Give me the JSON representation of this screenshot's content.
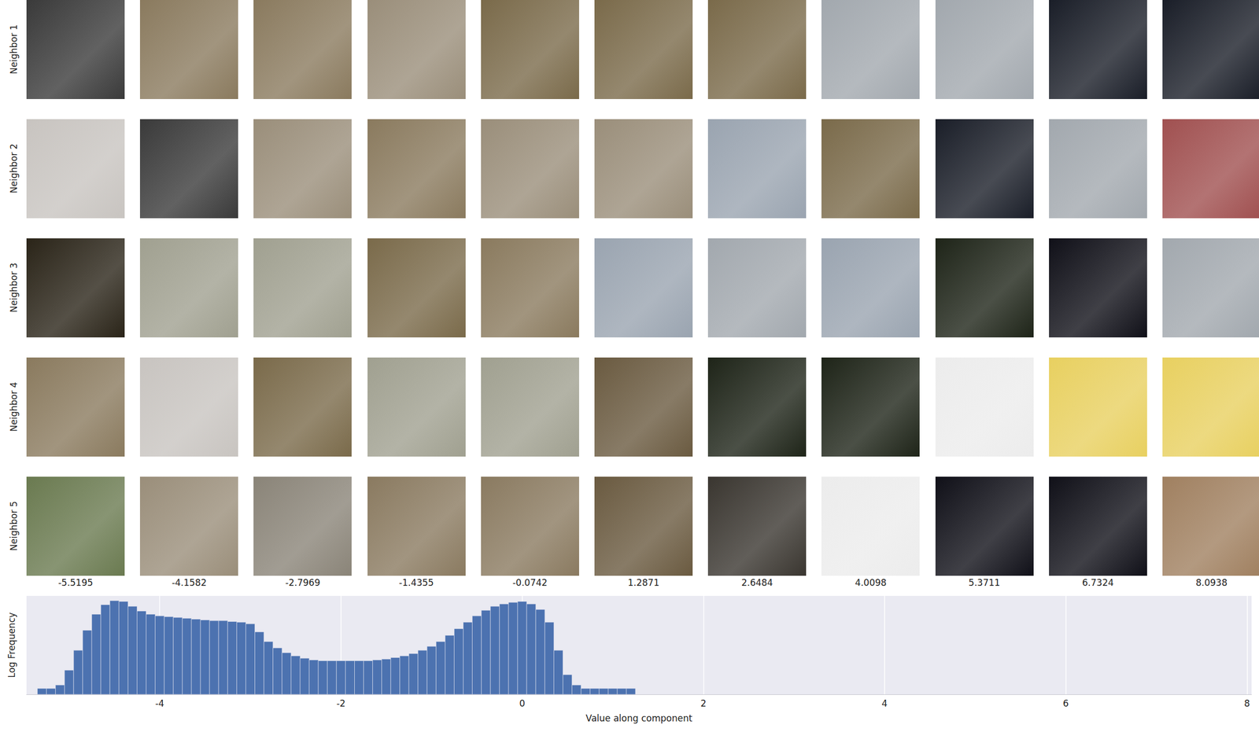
{
  "image_grid": {
    "row_labels": [
      "Neighbor 1",
      "Neighbor 2",
      "Neighbor 3",
      "Neighbor 4",
      "Neighbor 5"
    ],
    "column_values": [
      -5.5195,
      -4.1582,
      -2.7969,
      -1.4355,
      -0.0742,
      1.2871,
      2.6484,
      4.0098,
      5.3711,
      6.7324,
      8.0938
    ]
  },
  "chart_data": {
    "type": "histogram",
    "x_label": "Value along component",
    "y_label": "Log Frequency",
    "bins": [
      -5.35,
      -5.25,
      -5.15,
      -5.05,
      -4.95,
      -4.85,
      -4.75,
      -4.65,
      -4.55,
      -4.45,
      -4.35,
      -4.25,
      -4.15,
      -4.05,
      -3.95,
      -3.85,
      -3.75,
      -3.65,
      -3.55,
      -3.45,
      -3.35,
      -3.25,
      -3.15,
      -3.05,
      -2.95,
      -2.85,
      -2.75,
      -2.65,
      -2.55,
      -2.45,
      -2.35,
      -2.25,
      -2.15,
      -2.05,
      -1.95,
      -1.85,
      -1.75,
      -1.65,
      -1.55,
      -1.45,
      -1.35,
      -1.25,
      -1.15,
      -1.05,
      -0.95,
      -0.85,
      -0.75,
      -0.65,
      -0.55,
      -0.45,
      -0.35,
      -0.25,
      -0.15,
      -0.05,
      0.05,
      0.15,
      0.25,
      0.35,
      0.45,
      0.55,
      0.65,
      0.75,
      0.85,
      0.95,
      1.05,
      1.15,
      1.25
    ],
    "values": [
      2,
      2,
      3,
      17,
      172,
      1800,
      11700,
      35600,
      57000,
      52000,
      29500,
      17000,
      11700,
      9600,
      8800,
      8000,
      7300,
      6600,
      6000,
      5500,
      5500,
      5000,
      4600,
      3800,
      1480,
      480,
      230,
      130,
      90,
      68,
      56,
      51,
      51,
      51,
      51,
      51,
      51,
      56,
      62,
      74,
      90,
      118,
      172,
      275,
      480,
      990,
      2150,
      4600,
      9600,
      18600,
      29500,
      39000,
      47000,
      52000,
      39000,
      20400,
      4600,
      172,
      10,
      3,
      2,
      2,
      2,
      2,
      2,
      2
    ],
    "color": "#4c72b0",
    "xlim": [
      -5.47,
      8.05
    ],
    "xticks": [
      -4,
      -2,
      0,
      2,
      4,
      6,
      8
    ],
    "ylim": [
      1,
      100000
    ],
    "log": "y",
    "tick_labels": "x",
    "grid": true
  }
}
